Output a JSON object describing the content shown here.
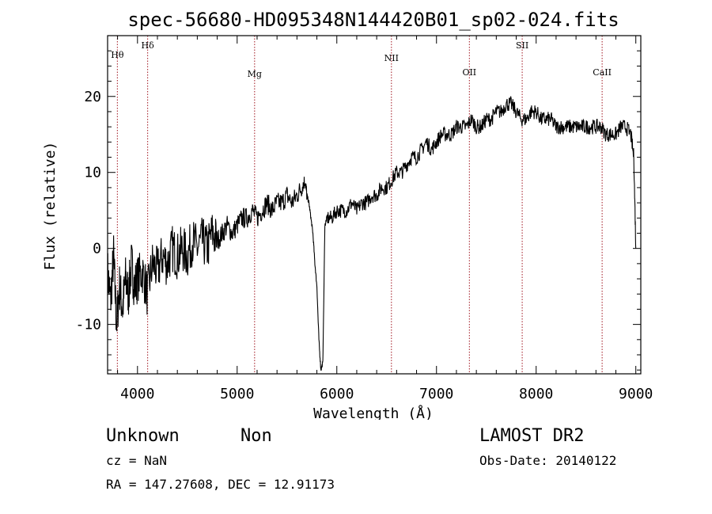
{
  "chart_data": {
    "type": "line",
    "title": "spec-56680-HD095348N144420B01_sp02-024.fits",
    "xlabel": "Wavelength (Å)",
    "ylabel": "Flux (relative)",
    "xlim": [
      3700,
      9050
    ],
    "ylim": [
      -16.5,
      28
    ],
    "x_ticks": [
      4000,
      5000,
      6000,
      7000,
      8000,
      9000
    ],
    "y_ticks": [
      -10,
      0,
      10,
      20
    ],
    "grid": false,
    "line_color": "#000000",
    "marker_color": "#a0141e",
    "spectral_lines": [
      {
        "label": "Hθ",
        "wavelength": 3798
      },
      {
        "label": "Hδ",
        "wavelength": 4102
      },
      {
        "label": "Mg",
        "wavelength": 5175
      },
      {
        "label": "NII",
        "wavelength": 6548
      },
      {
        "label": "OII",
        "wavelength": 7330
      },
      {
        "label": "SII",
        "wavelength": 7860
      },
      {
        "label": "CaII",
        "wavelength": 8662
      }
    ],
    "series": [
      {
        "x": [
          3700,
          3730,
          3760,
          3790,
          3820,
          3850,
          3880,
          3910,
          3940,
          3970,
          4000,
          4050,
          4100,
          4150,
          4200,
          4250,
          4300,
          4350,
          4400,
          4450,
          4500,
          4550,
          4600,
          4650,
          4700,
          4750,
          4800,
          4850,
          4900,
          4950,
          5000,
          5050,
          5100,
          5150,
          5200,
          5250,
          5300,
          5350,
          5400,
          5450,
          5500,
          5550,
          5600,
          5650,
          5680,
          5700,
          5720,
          5740,
          5760,
          5780,
          5800,
          5820,
          5840,
          5860,
          5880,
          5900,
          5950,
          6000,
          6050,
          6100,
          6150,
          6200,
          6250,
          6300,
          6350,
          6400,
          6450,
          6500,
          6550,
          6600,
          6650,
          6700,
          6750,
          6800,
          6850,
          6900,
          6950,
          7000,
          7050,
          7100,
          7150,
          7200,
          7250,
          7300,
          7350,
          7400,
          7450,
          7500,
          7550,
          7600,
          7650,
          7700,
          7750,
          7800,
          7850,
          7900,
          7950,
          8000,
          8050,
          8100,
          8150,
          8200,
          8250,
          8300,
          8350,
          8400,
          8450,
          8500,
          8550,
          8600,
          8650,
          8700,
          8750,
          8800,
          8850,
          8900,
          8950,
          8980,
          9000
        ],
        "y": [
          -3,
          -7,
          -1,
          -10,
          -5,
          -8,
          -4,
          -6,
          -2,
          -5,
          -4,
          -3,
          -6,
          -2,
          -3,
          -1,
          -2,
          0,
          -1,
          0,
          -1,
          1,
          0,
          1,
          0,
          2,
          1,
          2,
          3,
          2,
          3,
          4,
          4,
          5,
          4,
          5,
          6,
          5,
          6,
          6,
          7,
          6,
          7,
          8,
          9,
          7,
          6,
          4,
          2,
          -2,
          -5,
          -12,
          -16,
          -15,
          3,
          4,
          4,
          5,
          5,
          5,
          6,
          5,
          6,
          6,
          7,
          7,
          8,
          8,
          9,
          10,
          10,
          11,
          12,
          12,
          13,
          14,
          13,
          14,
          15,
          15,
          15,
          16,
          16,
          16,
          17,
          16,
          16,
          17,
          17,
          18,
          18,
          19,
          19,
          18,
          17,
          17,
          18,
          18,
          17,
          17,
          17,
          16,
          16,
          16,
          16,
          16,
          16,
          16,
          16,
          16,
          16,
          15,
          15,
          15,
          16,
          16,
          15,
          12,
          0
        ]
      }
    ]
  },
  "footer": {
    "object_class": "Unknown",
    "object_subclass": "Non",
    "survey": "LAMOST DR2",
    "redshift": "cz = NaN",
    "obs_date": "Obs-Date: 20140122",
    "coordinates": "RA = 147.27608, DEC =  12.91173"
  }
}
